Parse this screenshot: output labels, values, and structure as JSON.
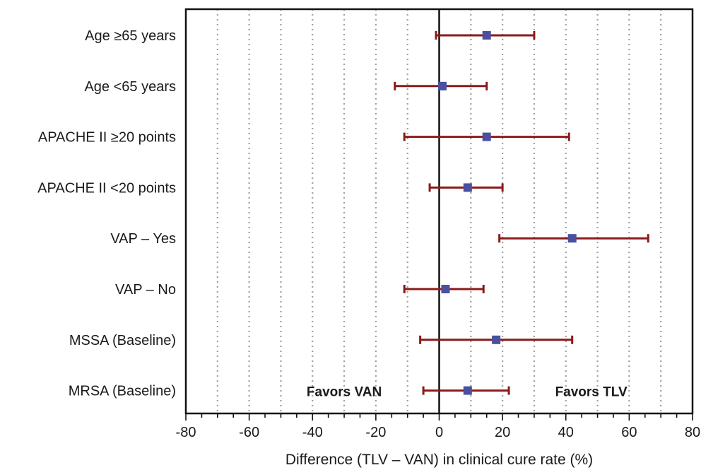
{
  "chart_data": {
    "type": "forest",
    "title": "",
    "xlabel": "Difference (TLV – VAN) in clinical cure rate (%)",
    "ylabel": "",
    "xlim": [
      -80,
      80
    ],
    "x_ticks": [
      -80,
      -60,
      -40,
      -20,
      0,
      20,
      40,
      60,
      80
    ],
    "minor_gridlines": [
      -70,
      -60,
      -50,
      -40,
      -30,
      -20,
      -10,
      10,
      20,
      30,
      40,
      50,
      60,
      70
    ],
    "grid": "vertical dotted",
    "annotations": {
      "left": "Favors VAN",
      "right": "Favors TLV"
    },
    "colors": {
      "interval": "#8b1a1a",
      "point": "#4b4fa0",
      "axis": "#111111",
      "grid": "#a0a0a0"
    },
    "rows": [
      {
        "label": "Age ≥65 years",
        "estimate": 15,
        "lower": -1,
        "upper": 30
      },
      {
        "label": "Age <65 years",
        "estimate": 1,
        "lower": -14,
        "upper": 15
      },
      {
        "label": "APACHE II ≥20 points",
        "estimate": 15,
        "lower": -11,
        "upper": 41
      },
      {
        "label": "APACHE II <20 points",
        "estimate": 9,
        "lower": -3,
        "upper": 20
      },
      {
        "label": "VAP – Yes",
        "estimate": 42,
        "lower": 19,
        "upper": 66
      },
      {
        "label": "VAP – No",
        "estimate": 2,
        "lower": -11,
        "upper": 14
      },
      {
        "label": "MSSA (Baseline)",
        "estimate": 18,
        "lower": -6,
        "upper": 42
      },
      {
        "label": "MRSA (Baseline)",
        "estimate": 9,
        "lower": -5,
        "upper": 22
      }
    ]
  }
}
